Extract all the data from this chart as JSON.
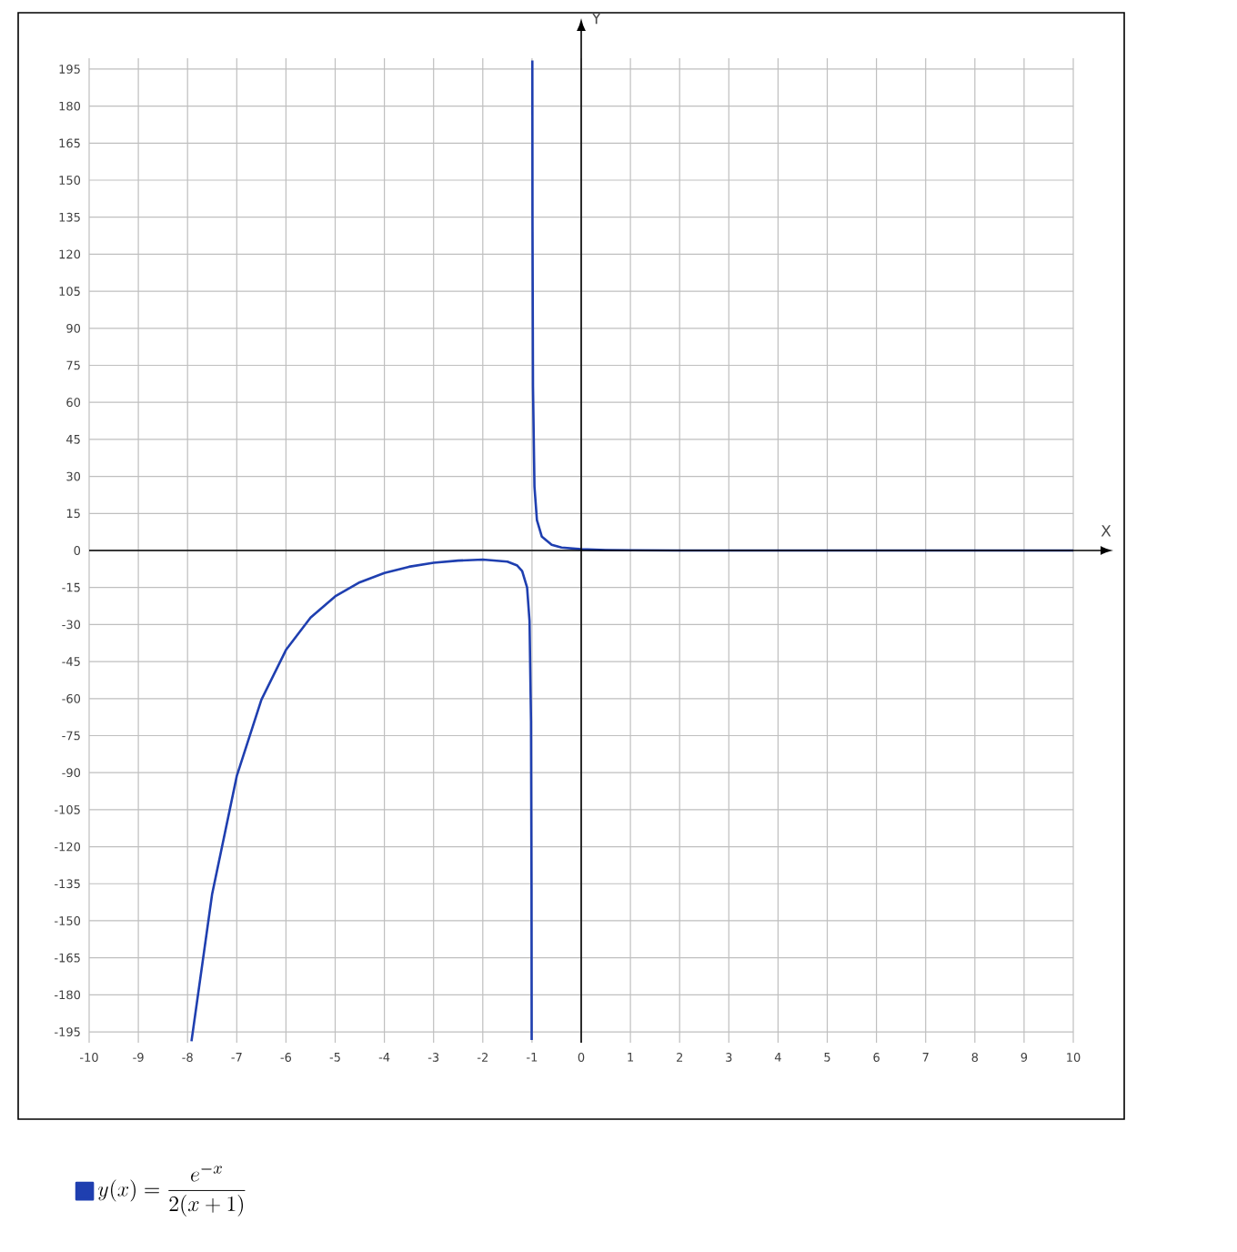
{
  "chart_data": {
    "type": "line",
    "xlabel": "X",
    "ylabel": "Y",
    "series": [
      {
        "name": "y(x) = \\frac{e^{-x}}{2(x + 1)}",
        "color": "#1f3fb0",
        "x": [
          -7.92,
          -7.5,
          -7,
          -6.5,
          -6,
          -5.5,
          -5,
          -4.5,
          -4,
          -3.5,
          -3,
          -2.5,
          -2,
          -1.5,
          -1.3,
          -1.2,
          -1.1,
          -1.05,
          -1.02,
          -1.01,
          -1.0069,
          -1,
          -0.9932,
          -0.99,
          -0.98,
          -0.95,
          -0.9,
          -0.8,
          -0.6,
          -0.4,
          0,
          0.5,
          1,
          2,
          4,
          10
        ],
        "values": [
          -198.8,
          -139.1,
          -91.4,
          -60.5,
          -40.3,
          -27.2,
          -18.6,
          -12.9,
          -9.1,
          -6.6,
          -5.0,
          -4.1,
          -3.7,
          -4.5,
          -6.1,
          -8.3,
          -15.0,
          -28.6,
          -69.3,
          -137,
          -198.3,
          null,
          198.5,
          134.6,
          66.6,
          25.9,
          12.3,
          5.6,
          2.3,
          1.2,
          0.5,
          0.2,
          0.1,
          0,
          0,
          0
        ]
      }
    ],
    "xlim": [
      -10,
      10
    ],
    "ylim": [
      -199.4,
      199.4
    ],
    "xticks": [
      -10,
      -9,
      -8,
      -7,
      -6,
      -5,
      -4,
      -3,
      -2,
      -1,
      0,
      1,
      2,
      3,
      4,
      5,
      6,
      7,
      8,
      9,
      10
    ],
    "yticks": [
      -195,
      -180,
      -165,
      -150,
      -135,
      -120,
      -105,
      -90,
      -75,
      -60,
      -45,
      -30,
      -15,
      0,
      15,
      30,
      45,
      60,
      75,
      90,
      105,
      120,
      135,
      150,
      165,
      180,
      195
    ],
    "grid": true,
    "legend": "bottom left",
    "marker": "none",
    "line_style": "solid"
  }
}
